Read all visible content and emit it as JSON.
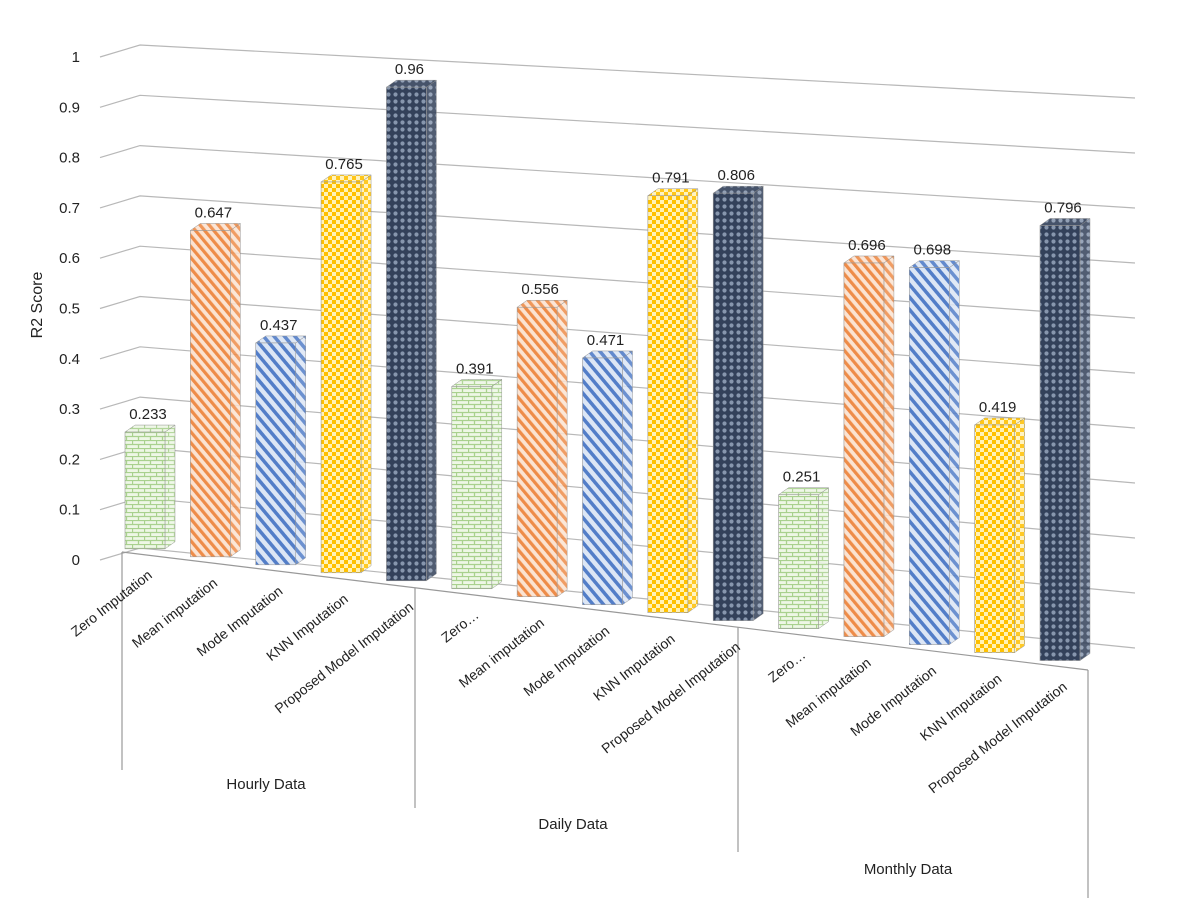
{
  "chart_data": {
    "type": "bar",
    "ylabel": "R2 Score",
    "ylim": [
      0,
      1
    ],
    "y_ticks": [
      "0",
      "0.1",
      "0.2",
      "0.3",
      "0.4",
      "0.5",
      "0.6",
      "0.7",
      "0.8",
      "0.9",
      "1"
    ],
    "grid": true,
    "groups": [
      {
        "name": "Hourly Data",
        "bars": [
          {
            "category": "Zero Imputation",
            "value": 0.233,
            "label": "0.233",
            "pattern": "brick"
          },
          {
            "category": "Mean imputation",
            "value": 0.647,
            "label": "0.647",
            "pattern": "diagonal"
          },
          {
            "category": "Mode Imputation",
            "value": 0.437,
            "label": "0.437",
            "pattern": "diagonal-wide"
          },
          {
            "category": "KNN Imputation",
            "value": 0.765,
            "label": "0.765",
            "pattern": "checker"
          },
          {
            "category": "Proposed Model Imputation",
            "value": 0.96,
            "label": "0.96",
            "pattern": "dots"
          }
        ]
      },
      {
        "name": "Daily Data",
        "bars": [
          {
            "category": "Zero…",
            "value": 0.391,
            "label": "0.391",
            "pattern": "brick"
          },
          {
            "category": "Mean imputation",
            "value": 0.556,
            "label": "0.556",
            "pattern": "diagonal"
          },
          {
            "category": "Mode Imputation",
            "value": 0.471,
            "label": "0.471",
            "pattern": "diagonal-wide"
          },
          {
            "category": "KNN Imputation",
            "value": 0.791,
            "label": "0.791",
            "pattern": "checker"
          },
          {
            "category": "Proposed Model Imputation",
            "value": 0.806,
            "label": "0.806",
            "pattern": "dots"
          }
        ]
      },
      {
        "name": "Monthly Data",
        "bars": [
          {
            "category": "Zero…",
            "value": 0.251,
            "label": "0.251",
            "pattern": "brick"
          },
          {
            "category": "Mean imputation",
            "value": 0.696,
            "label": "0.696",
            "pattern": "diagonal"
          },
          {
            "category": "Mode Imputation",
            "value": 0.698,
            "label": "0.698",
            "pattern": "diagonal-wide"
          },
          {
            "category": "KNN Imputation",
            "value": 0.419,
            "label": "0.419",
            "pattern": "checker"
          },
          {
            "category": "Proposed Model Imputation",
            "value": 0.796,
            "label": "0.796",
            "pattern": "dots"
          }
        ]
      }
    ],
    "colors": {
      "brick": "#a9d18e",
      "diagonal": "#f4b183",
      "diagonal-wide": "#8faadc",
      "checker": "#ffd966",
      "dots": "#44546a",
      "brick_bg": "#e2f0d9",
      "diagonal_line": "#ed7d31",
      "diagonal_wide_line": "#4472c4",
      "checker_fill": "#ffc000",
      "dots_bg": "#2f3b4c"
    }
  }
}
